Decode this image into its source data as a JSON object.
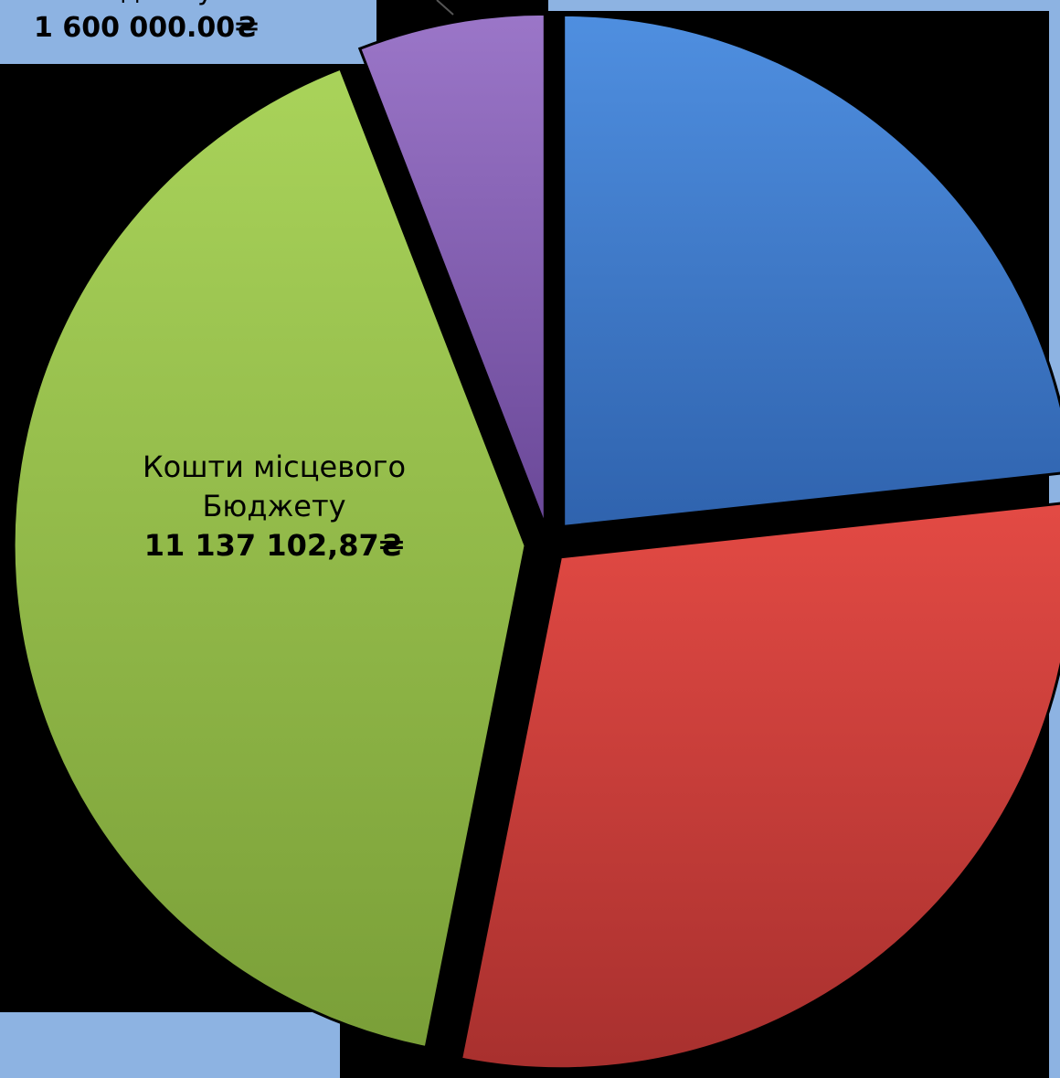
{
  "chart_data": {
    "type": "pie",
    "slices": [
      {
        "value": 1600000.0,
        "color": "#8a63b5",
        "label_line1": "",
        "label_line2": "Бюджету",
        "amount_text": "1 600 000.00₴"
      },
      {
        "value": 6330000,
        "color": "#4a84d0",
        "label_line1": "",
        "label_line2": "",
        "amount_text": ""
      },
      {
        "value": 8100000,
        "color": "#d9453f",
        "label_line1": "",
        "label_line2": "",
        "amount_text": ""
      },
      {
        "value": 11137102.87,
        "color": "#93bf4a",
        "label_line1": "Кошти місцевого",
        "label_line2": "Бюджету",
        "amount_text": "11 137 102,87₴"
      }
    ]
  },
  "background_color": "#8db3e2"
}
